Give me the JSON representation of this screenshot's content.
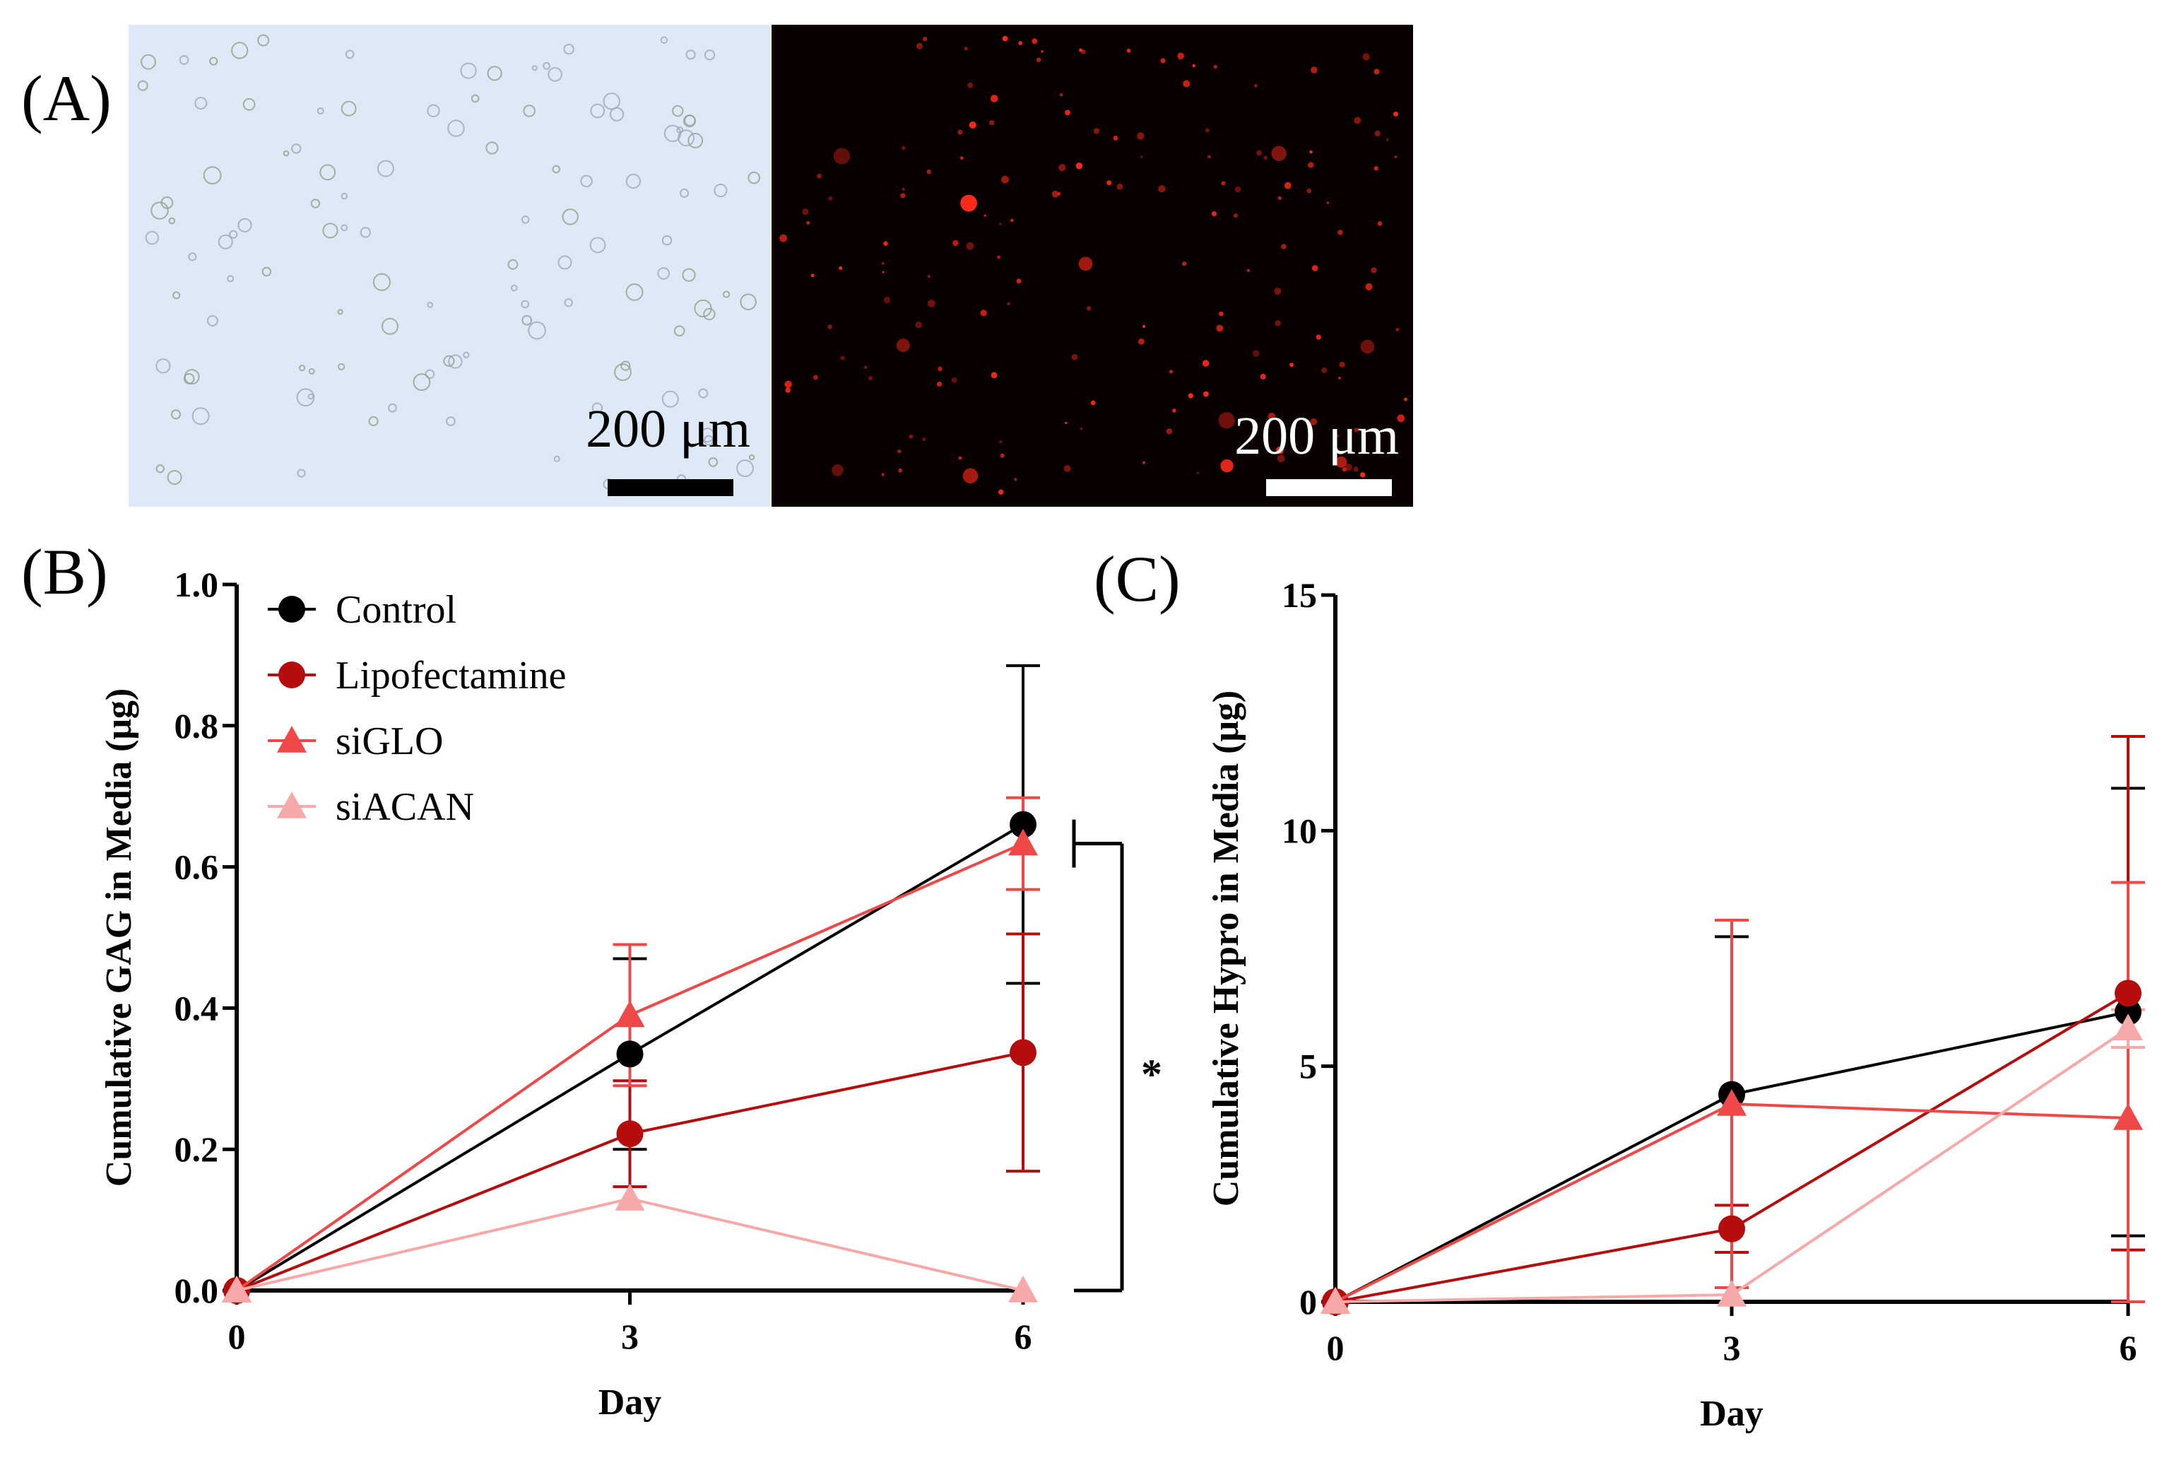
{
  "panel_labels": {
    "a": "(A)",
    "b": "(B)",
    "c": "(C)"
  },
  "micrographs": {
    "brightfield_scale_label": "200 μm",
    "fluorescence_scale_label": "200 μm",
    "brightfield_bg": "#dfe8f6",
    "fluorescence_bg": "#0a0000",
    "fluorescence_accent": "#ff2a1a"
  },
  "series_style": {
    "Control": {
      "color": "#000000",
      "marker": "circle"
    },
    "Lipofectamine": {
      "color": "#b50d0d",
      "marker": "circle"
    },
    "siGLO": {
      "color": "#ef4848",
      "marker": "triangle"
    },
    "siACAN": {
      "color": "#f7a9a9",
      "marker": "triangle"
    }
  },
  "chart_data": [
    {
      "type": "line",
      "panel": "(B)",
      "title": "",
      "xlabel": "Day",
      "ylabel": "Cumulative GAG in Media (μg)",
      "x": [
        0,
        3,
        6
      ],
      "xticks": [
        "0",
        "3",
        "6"
      ],
      "yticks": [
        "0.0",
        "0.2",
        "0.4",
        "0.6",
        "0.8",
        "1.0"
      ],
      "xlim": [
        0,
        6
      ],
      "ylim": [
        0,
        1.0
      ],
      "legend": [
        "Control",
        "Lipofectamine",
        "siGLO",
        "siACAN"
      ],
      "series": [
        {
          "name": "Control",
          "values": [
            0,
            0.335,
            0.66
          ],
          "err": [
            0,
            0.135,
            0.225
          ]
        },
        {
          "name": "Lipofectamine",
          "values": [
            0,
            0.222,
            0.337
          ],
          "err": [
            0,
            0.075,
            0.168
          ]
        },
        {
          "name": "siGLO",
          "values": [
            0,
            0.39,
            0.633
          ],
          "err": [
            0,
            0.1,
            0.065
          ]
        },
        {
          "name": "siACAN",
          "values": [
            0,
            0.13,
            0.0
          ],
          "err": [
            0,
            0,
            0
          ]
        }
      ],
      "annotations": [
        {
          "text": "*",
          "between": [
            "siGLO",
            "siACAN"
          ],
          "day": 6
        }
      ]
    },
    {
      "type": "line",
      "panel": "(C)",
      "title": "",
      "xlabel": "Day",
      "ylabel": "Cumulative Hypro in Media (μg)",
      "x": [
        0,
        3,
        6
      ],
      "xticks": [
        "0",
        "3",
        "6"
      ],
      "yticks": [
        "0",
        "5",
        "10",
        "15"
      ],
      "xlim": [
        0,
        6
      ],
      "ylim": [
        0,
        15
      ],
      "series": [
        {
          "name": "Control",
          "values": [
            0,
            4.4,
            6.15
          ],
          "err": [
            0,
            3.35,
            4.75
          ]
        },
        {
          "name": "Lipofectamine",
          "values": [
            0,
            1.55,
            6.55
          ],
          "err": [
            0,
            0.5,
            5.45
          ]
        },
        {
          "name": "siGLO",
          "values": [
            0,
            4.2,
            3.9
          ],
          "err": [
            0,
            3.9,
            5.0
          ]
        },
        {
          "name": "siACAN",
          "values": [
            0,
            0.15,
            5.8
          ],
          "err": [
            0,
            0,
            0.4
          ]
        }
      ]
    }
  ]
}
